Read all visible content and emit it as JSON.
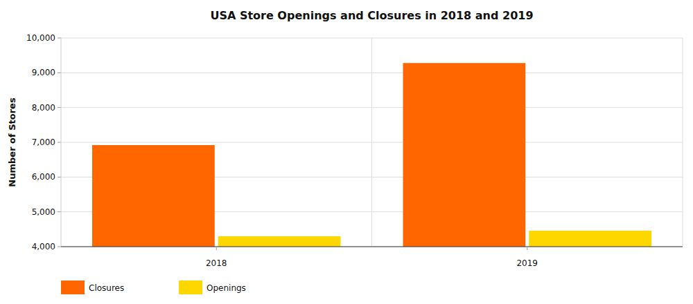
{
  "chart_data": {
    "type": "bar",
    "title": "USA Store Openings and Closures in 2018 and 2019",
    "ylabel": "Number of Stores",
    "categories": [
      "2018",
      "2019"
    ],
    "series": [
      {
        "name": "Closures",
        "color": "#ff6600",
        "values": [
          6920,
          9280
        ]
      },
      {
        "name": "Openings",
        "color": "#ffd700",
        "values": [
          4300,
          4460
        ]
      }
    ],
    "ylim": [
      4000,
      10000
    ],
    "yticks": [
      {
        "value": 4000,
        "label": "4,000"
      },
      {
        "value": 5000,
        "label": "5,000"
      },
      {
        "value": 6000,
        "label": "6,000"
      },
      {
        "value": 7000,
        "label": "7,000"
      },
      {
        "value": 8000,
        "label": "8,000"
      },
      {
        "value": 9000,
        "label": "9,000"
      },
      {
        "value": 10000,
        "label": "10,000"
      }
    ],
    "grid": true,
    "legend": "bottom"
  }
}
